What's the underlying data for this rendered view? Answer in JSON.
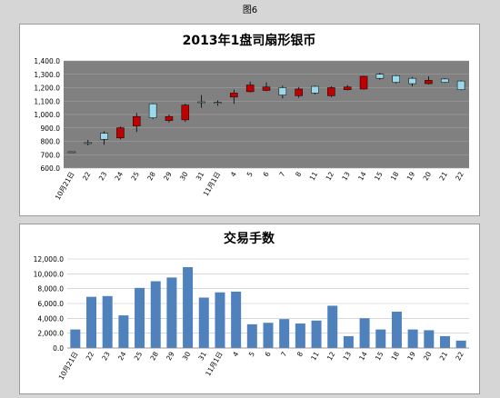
{
  "figure_caption": "图6",
  "chart_data": [
    {
      "type": "candlestick",
      "title": "2013年1盘司扇形银币",
      "categories": [
        "10月21日",
        "22",
        "23",
        "24",
        "25",
        "28",
        "29",
        "30",
        "31",
        "11月1日",
        "4",
        "5",
        "6",
        "7",
        "8",
        "11",
        "12",
        "13",
        "14",
        "15",
        "18",
        "19",
        "20",
        "21",
        "22"
      ],
      "series": [
        {
          "values": [
            {
              "open": 718,
              "close": 722,
              "high": 725,
              "low": 716
            },
            {
              "open": 785,
              "close": 790,
              "high": 810,
              "low": 770
            },
            {
              "open": 815,
              "close": 860,
              "high": 875,
              "low": 775
            },
            {
              "open": 900,
              "close": 825,
              "high": 910,
              "low": 815
            },
            {
              "open": 985,
              "close": 915,
              "high": 1010,
              "low": 870
            },
            {
              "open": 975,
              "close": 1080,
              "high": 1085,
              "low": 965
            },
            {
              "open": 985,
              "close": 955,
              "high": 1000,
              "low": 940
            },
            {
              "open": 1070,
              "close": 960,
              "high": 1080,
              "low": 945
            },
            {
              "open": 1090,
              "close": 1095,
              "high": 1145,
              "low": 1050
            },
            {
              "open": 1085,
              "close": 1090,
              "high": 1105,
              "low": 1065
            },
            {
              "open": 1160,
              "close": 1130,
              "high": 1185,
              "low": 1080
            },
            {
              "open": 1220,
              "close": 1170,
              "high": 1245,
              "low": 1165
            },
            {
              "open": 1205,
              "close": 1180,
              "high": 1240,
              "low": 1175
            },
            {
              "open": 1145,
              "close": 1200,
              "high": 1215,
              "low": 1120
            },
            {
              "open": 1190,
              "close": 1140,
              "high": 1205,
              "low": 1125
            },
            {
              "open": 1160,
              "close": 1210,
              "high": 1215,
              "low": 1150
            },
            {
              "open": 1200,
              "close": 1140,
              "high": 1210,
              "low": 1130
            },
            {
              "open": 1205,
              "close": 1185,
              "high": 1220,
              "low": 1180
            },
            {
              "open": 1285,
              "close": 1190,
              "high": 1290,
              "low": 1185
            },
            {
              "open": 1270,
              "close": 1300,
              "high": 1310,
              "low": 1260
            },
            {
              "open": 1240,
              "close": 1290,
              "high": 1295,
              "low": 1230
            },
            {
              "open": 1230,
              "close": 1270,
              "high": 1280,
              "low": 1210
            },
            {
              "open": 1255,
              "close": 1230,
              "high": 1285,
              "low": 1225
            },
            {
              "open": 1240,
              "close": 1265,
              "high": 1270,
              "low": 1235
            },
            {
              "open": 1185,
              "close": 1250,
              "high": 1255,
              "low": 1180
            }
          ]
        }
      ],
      "y_ticks": [
        "600.0",
        "700.0",
        "800.0",
        "900.0",
        "1,000.0",
        "1,100.0",
        "1,200.0",
        "1,300.0",
        "1,400.0"
      ],
      "ylim": [
        600,
        1400
      ],
      "plot_background": "#808080",
      "up_color": "#99d9ea",
      "down_color": "#c00000",
      "grid": true,
      "legend": "none"
    },
    {
      "type": "bar",
      "title": "交易手数",
      "categories": [
        "10月21日",
        "22",
        "23",
        "24",
        "25",
        "28",
        "29",
        "30",
        "31",
        "11月1日",
        "4",
        "5",
        "6",
        "7",
        "8",
        "11",
        "12",
        "13",
        "14",
        "15",
        "18",
        "19",
        "20",
        "21",
        "22"
      ],
      "series": [
        {
          "values": [
            2500,
            6900,
            7000,
            4400,
            8100,
            9000,
            9500,
            10900,
            6800,
            7500,
            7600,
            3200,
            3400,
            3900,
            3300,
            3700,
            5700,
            1600,
            4000,
            2500,
            4900,
            2500,
            2400,
            1600,
            1000
          ]
        }
      ],
      "y_ticks": [
        "0.0",
        "2,000.0",
        "4,000.0",
        "6,000.0",
        "8,000.0",
        "10,000.0",
        "12,000.0"
      ],
      "ylim": [
        0,
        12000
      ],
      "bar_color": "#4f81bd",
      "grid": true,
      "legend": "none"
    }
  ]
}
